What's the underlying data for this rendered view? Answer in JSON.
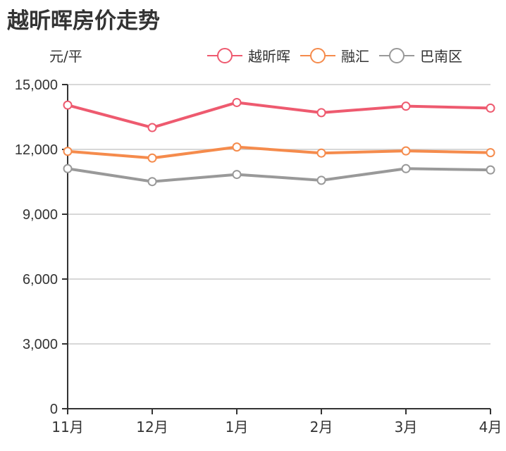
{
  "chart_data": {
    "type": "line",
    "title": "越昕晖房价走势",
    "ylabel": "元/平",
    "xlabel": "",
    "categories": [
      "11月",
      "12月",
      "1月",
      "2月",
      "3月",
      "4月"
    ],
    "ylim": [
      0,
      15000
    ],
    "yticks": [
      0,
      3000,
      6000,
      9000,
      12000,
      15000
    ],
    "ytick_labels": [
      "0",
      "3,000",
      "6,000",
      "9,000",
      "12,000",
      "15,000"
    ],
    "grid": true,
    "legend_position": "top-right",
    "series": [
      {
        "name": "越昕晖",
        "color": "#ee5a6f",
        "values": [
          14050,
          13010,
          14170,
          13700,
          14000,
          13910
        ]
      },
      {
        "name": "融汇",
        "color": "#f58b4c",
        "values": [
          11910,
          11600,
          12110,
          11830,
          11930,
          11850
        ]
      },
      {
        "name": "巴南区",
        "color": "#999999",
        "values": [
          11110,
          10510,
          10840,
          10570,
          11110,
          11050
        ]
      }
    ]
  },
  "header": {
    "title": "越昕晖房价走势",
    "unit": "元/平"
  },
  "legend": {
    "items": [
      {
        "label": "越昕晖",
        "color": "#ee5a6f"
      },
      {
        "label": "融汇",
        "color": "#f58b4c"
      },
      {
        "label": "巴南区",
        "color": "#999999"
      }
    ]
  }
}
